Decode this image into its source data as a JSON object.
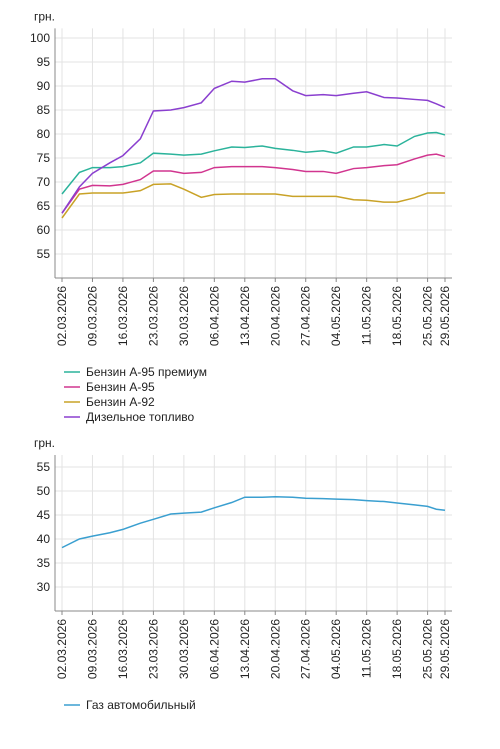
{
  "chart_data": [
    {
      "type": "line",
      "unit": "грн.",
      "x": [
        "02.03.2026",
        "06.03.2026",
        "09.03.2026",
        "13.03.2026",
        "16.03.2026",
        "20.03.2026",
        "23.03.2026",
        "27.03.2026",
        "30.03.2026",
        "03.04.2026",
        "06.04.2026",
        "10.04.2026",
        "13.04.2026",
        "17.04.2026",
        "20.04.2026",
        "24.04.2026",
        "27.04.2026",
        "01.05.2026",
        "04.05.2026",
        "08.05.2026",
        "11.05.2026",
        "15.05.2026",
        "18.05.2026",
        "22.05.2026",
        "25.05.2026",
        "27.05.2026",
        "29.05.2026"
      ],
      "xlim": [
        "02.03.2026",
        "29.05.2026"
      ],
      "xticks": [
        "02.03.2026",
        "09.03.2026",
        "16.03.2026",
        "23.03.2026",
        "30.03.2026",
        "06.04.2026",
        "13.04.2026",
        "20.04.2026",
        "27.04.2026",
        "04.05.2026",
        "11.05.2026",
        "18.05.2026",
        "25.05.2026",
        "29.05.2026"
      ],
      "ylim": [
        50,
        102
      ],
      "yticks": [
        55,
        60,
        65,
        70,
        75,
        80,
        85,
        90,
        95,
        100
      ],
      "grid": true,
      "series": [
        {
          "name": "Бензин А-95 премиум",
          "color": "#2bb39b",
          "values": [
            67.5,
            72,
            73,
            73,
            73.2,
            74,
            76,
            75.8,
            75.6,
            75.8,
            76.5,
            77.3,
            77.2,
            77.5,
            77,
            76.6,
            76.2,
            76.5,
            76,
            77.3,
            77.3,
            77.8,
            77.5,
            79.5,
            80.2,
            80.3,
            79.8
          ]
        },
        {
          "name": "Бензин А-95",
          "color": "#d1358f",
          "values": [
            63.5,
            68.5,
            69.3,
            69.2,
            69.5,
            70.5,
            72.3,
            72.3,
            71.8,
            72,
            73,
            73.2,
            73.2,
            73.2,
            73,
            72.6,
            72.2,
            72.2,
            71.8,
            72.8,
            73,
            73.4,
            73.6,
            74.8,
            75.6,
            75.8,
            75.3
          ]
        },
        {
          "name": "Бензин А-92",
          "color": "#c9a227",
          "values": [
            62.5,
            67.5,
            67.7,
            67.7,
            67.7,
            68.2,
            69.5,
            69.6,
            68.5,
            66.8,
            67.4,
            67.5,
            67.5,
            67.5,
            67.5,
            67,
            67,
            67,
            67,
            66.3,
            66.2,
            65.8,
            65.8,
            66.7,
            67.7,
            67.7,
            67.7
          ]
        },
        {
          "name": "Дизельное топливо",
          "color": "#8a3fcf",
          "values": [
            63.5,
            69,
            71.8,
            74,
            75.5,
            79,
            84.8,
            85,
            85.5,
            86.5,
            89.5,
            91,
            90.8,
            91.5,
            91.5,
            89,
            88,
            88.2,
            88,
            88.5,
            88.8,
            87.6,
            87.5,
            87.2,
            87,
            86.3,
            85.5
          ]
        }
      ]
    },
    {
      "type": "line",
      "unit": "грн.",
      "x": [
        "02.03.2026",
        "06.03.2026",
        "09.03.2026",
        "13.03.2026",
        "16.03.2026",
        "20.03.2026",
        "23.03.2026",
        "27.03.2026",
        "30.03.2026",
        "03.04.2026",
        "06.04.2026",
        "10.04.2026",
        "13.04.2026",
        "17.04.2026",
        "20.04.2026",
        "24.04.2026",
        "27.04.2026",
        "01.05.2026",
        "04.05.2026",
        "08.05.2026",
        "11.05.2026",
        "15.05.2026",
        "18.05.2026",
        "22.05.2026",
        "25.05.2026",
        "27.05.2026",
        "29.05.2026"
      ],
      "xlim": [
        "02.03.2026",
        "29.05.2026"
      ],
      "xticks": [
        "02.03.2026",
        "09.03.2026",
        "16.03.2026",
        "23.03.2026",
        "30.03.2026",
        "06.04.2026",
        "13.04.2026",
        "20.04.2026",
        "27.04.2026",
        "04.05.2026",
        "11.05.2026",
        "18.05.2026",
        "25.05.2026",
        "29.05.2026"
      ],
      "ylim": [
        25,
        57.5
      ],
      "yticks": [
        30,
        35,
        40,
        45,
        50,
        55
      ],
      "grid": true,
      "series": [
        {
          "name": "Газ автомобильный",
          "color": "#3a9fd0",
          "values": [
            38.2,
            40,
            40.6,
            41.3,
            42,
            43.3,
            44.1,
            45.2,
            45.4,
            45.6,
            46.5,
            47.6,
            48.7,
            48.7,
            48.8,
            48.7,
            48.5,
            48.4,
            48.3,
            48.2,
            48,
            47.8,
            47.5,
            47.1,
            46.8,
            46.2,
            46
          ]
        }
      ]
    }
  ]
}
